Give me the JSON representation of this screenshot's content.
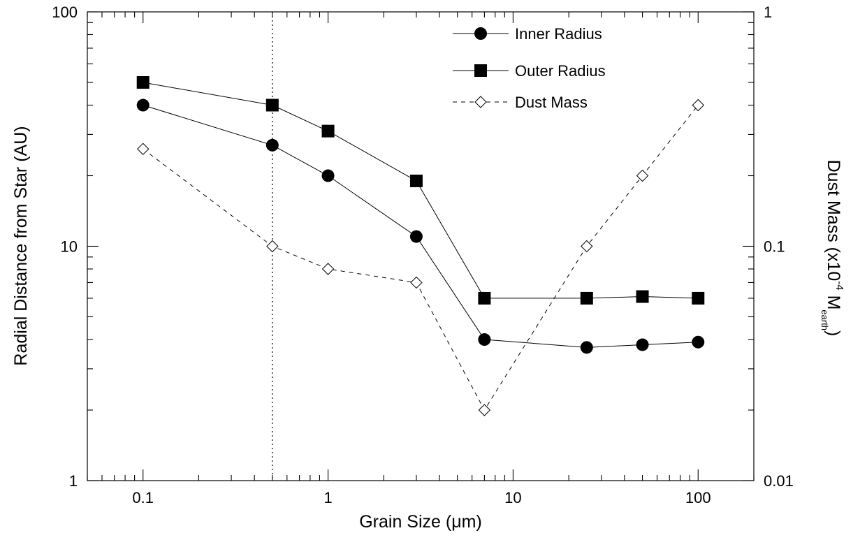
{
  "chart_data": {
    "type": "line",
    "xscale": "log",
    "xlim": [
      0.05,
      200
    ],
    "xlabel_prefix": "Grain Size (",
    "xlabel_unit": "μm",
    "xlabel_suffix": ")",
    "xticks": [
      "0.1",
      "1",
      "10",
      "100"
    ],
    "y_left": {
      "label": "Radial Distance from Star (AU)",
      "scale": "log",
      "lim": [
        1,
        100
      ],
      "ticks": [
        "1",
        "10",
        "100"
      ]
    },
    "y_right": {
      "label_main": "Dust Mass (x10",
      "label_exp": "-4",
      "label_m": " M",
      "label_sub": "earth",
      "label_close": ")",
      "scale": "log",
      "lim": [
        0.01,
        1
      ],
      "ticks": [
        "0.01",
        "0.1",
        "1"
      ]
    },
    "vline_x": 0.5,
    "x": [
      0.1,
      0.5,
      1,
      3,
      7,
      25,
      50,
      100
    ],
    "series": [
      {
        "name": "Inner Radius",
        "axis": "left",
        "marker": "circle",
        "line": "solid",
        "values": [
          40,
          27,
          20,
          11,
          4,
          3.7,
          3.8,
          3.9
        ]
      },
      {
        "name": "Outer Radius",
        "axis": "left",
        "marker": "square",
        "line": "solid",
        "values": [
          50,
          40,
          31,
          19,
          6,
          6,
          6.1,
          6
        ]
      },
      {
        "name": "Dust Mass",
        "axis": "right",
        "marker": "diamond-open",
        "line": "dashed",
        "values": [
          0.26,
          0.1,
          0.08,
          0.07,
          0.02,
          0.1,
          0.2,
          0.4
        ]
      }
    ],
    "legend_position": "top-right",
    "grid": false
  }
}
